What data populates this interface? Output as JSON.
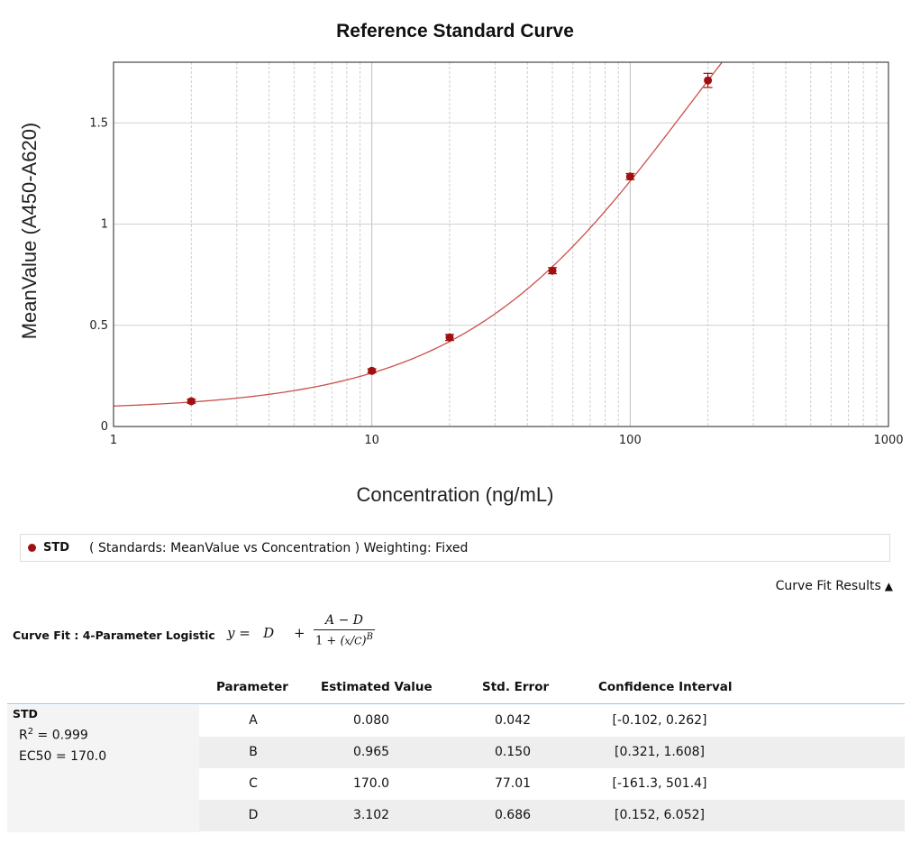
{
  "chart_data": {
    "type": "scatter",
    "title": "Reference Standard Curve",
    "xlabel": "Concentration (ng/mL)",
    "ylabel": "MeanValue (A450-A620)",
    "xscale": "log",
    "xlim": [
      1,
      1000
    ],
    "ylim": [
      0,
      1.8
    ],
    "x_ticks": [
      1,
      10,
      100,
      1000
    ],
    "x_tick_labels": [
      "1",
      "10",
      "100",
      "1000"
    ],
    "y_ticks": [
      0,
      0.5,
      1,
      1.5
    ],
    "y_tick_labels": [
      "0",
      "0.5",
      "1",
      "1.5"
    ],
    "grid": true,
    "series": [
      {
        "name": "STD",
        "color": "#a01010",
        "x": [
          2,
          10,
          20,
          50,
          100,
          200
        ],
        "y": [
          0.125,
          0.275,
          0.44,
          0.77,
          1.235,
          1.71
        ],
        "err": [
          0.01,
          0.01,
          0.015,
          0.015,
          0.015,
          0.035
        ]
      }
    ],
    "fit": {
      "model": "4PL",
      "A": 0.08,
      "B": 0.965,
      "C": 170.0,
      "D": 3.102,
      "color": "#c9504a"
    }
  },
  "legend": {
    "name": "STD",
    "description": "( Standards: MeanValue vs Concentration )  Weighting: Fixed"
  },
  "results_toggle": {
    "label": "Curve Fit Results",
    "arrow": "▲"
  },
  "curve_fit": {
    "label": "Curve Fit : 4-Parameter Logistic",
    "formula": {
      "lhs": "y =",
      "d": "D",
      "plus": "+",
      "numerator": "A − D",
      "den_prefix": "1 + ",
      "x_var": "x",
      "c_var": "C",
      "exponent": "B"
    }
  },
  "table": {
    "headers": {
      "parameter": "Parameter",
      "estimate": "Estimated Value",
      "std_error": "Std. Error",
      "ci": "Confidence Interval"
    },
    "group": {
      "name": "STD",
      "r2_label": "R",
      "r2_sup": "2",
      "r2_value": " = 0.999",
      "ec50": "EC50 = 170.0"
    },
    "rows": [
      {
        "parameter": "A",
        "estimate": "0.080",
        "std_error": "0.042",
        "ci": "[-0.102, 0.262]"
      },
      {
        "parameter": "B",
        "estimate": "0.965",
        "std_error": "0.150",
        "ci": "[0.321, 1.608]"
      },
      {
        "parameter": "C",
        "estimate": "170.0",
        "std_error": "77.01",
        "ci": "[-161.3, 501.4]"
      },
      {
        "parameter": "D",
        "estimate": "3.102",
        "std_error": "0.686",
        "ci": "[0.152, 6.052]"
      }
    ]
  }
}
